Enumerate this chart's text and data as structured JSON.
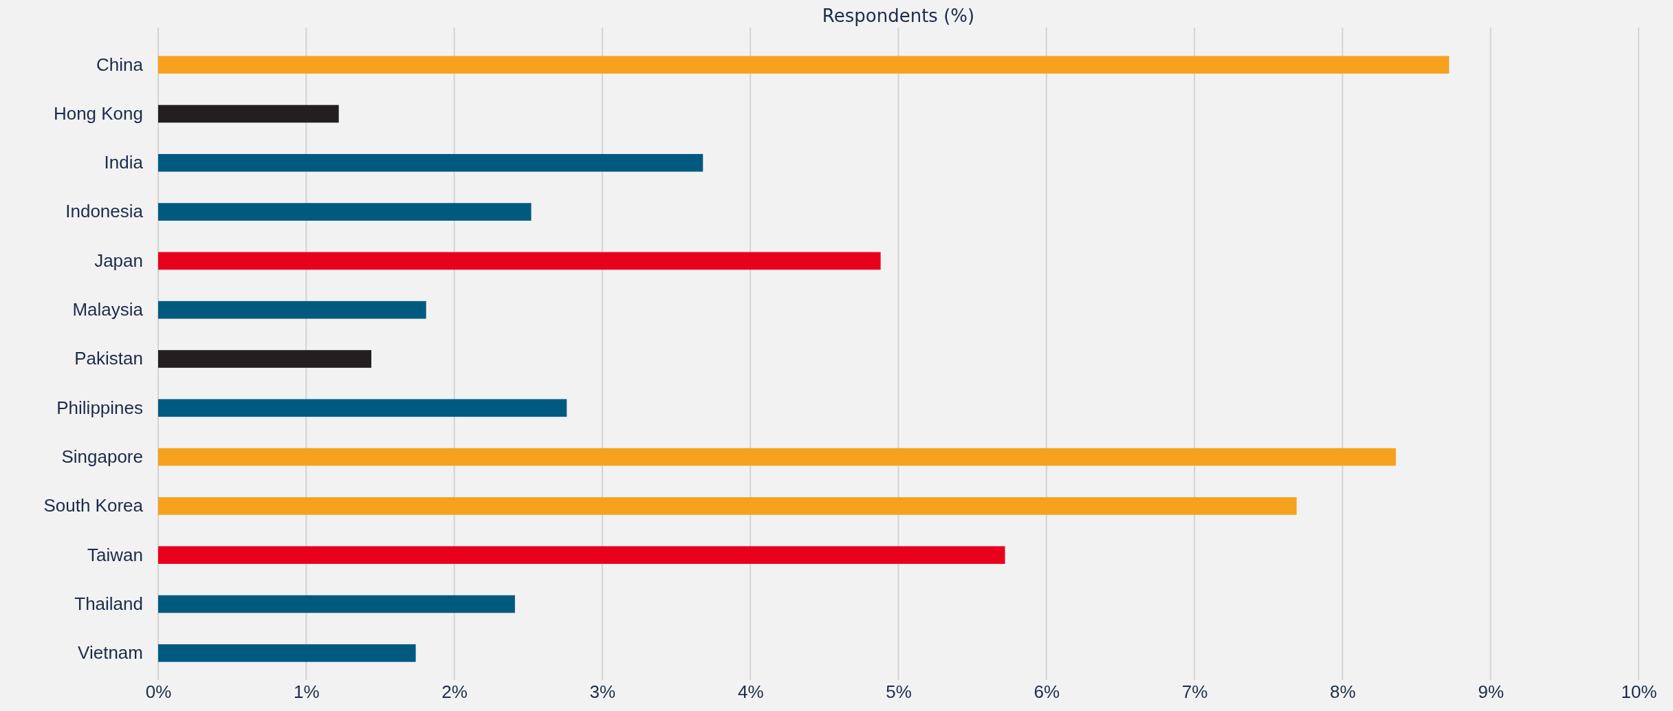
{
  "chart_data": {
    "type": "bar",
    "orientation": "horizontal",
    "xlabel": "Respondents (%)",
    "categories": [
      "China",
      "Hong Kong",
      "India",
      "Indonesia",
      "Japan",
      "Malaysia",
      "Pakistan",
      "Philippines",
      "Singapore",
      "South Korea",
      "Taiwan",
      "Thailand",
      "Vietnam"
    ],
    "values": [
      8.72,
      1.22,
      3.68,
      2.52,
      4.88,
      1.81,
      1.44,
      2.76,
      8.36,
      7.69,
      5.72,
      2.41,
      1.74
    ],
    "colors": [
      "#f6a21e",
      "#231f20",
      "#005a80",
      "#005a80",
      "#e8001c",
      "#005a80",
      "#231f20",
      "#005a80",
      "#f6a21e",
      "#f6a21e",
      "#e8001c",
      "#005a80",
      "#005a80"
    ],
    "xlim": [
      0,
      10
    ],
    "xticks": [
      {
        "value": 0,
        "label": "0%"
      },
      {
        "value": 1,
        "label": "1%"
      },
      {
        "value": 2,
        "label": "2%"
      },
      {
        "value": 3,
        "label": "3%"
      },
      {
        "value": 4,
        "label": "4%"
      },
      {
        "value": 5,
        "label": "5%"
      },
      {
        "value": 6,
        "label": "6%"
      },
      {
        "value": 7,
        "label": "7%"
      },
      {
        "value": 8,
        "label": "8%"
      },
      {
        "value": 9,
        "label": "9%"
      },
      {
        "value": 10,
        "label": "10%"
      }
    ],
    "grid": "x"
  }
}
